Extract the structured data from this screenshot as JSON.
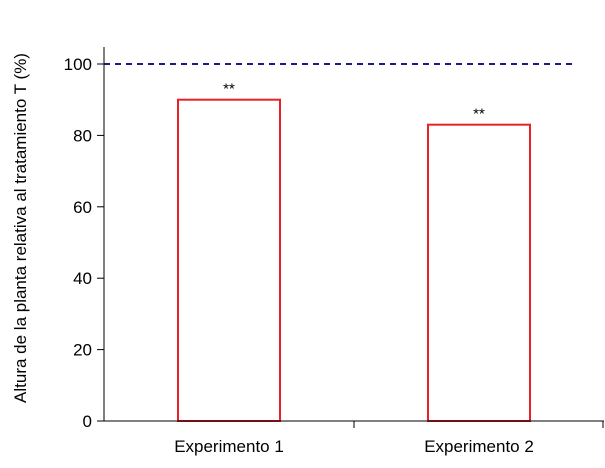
{
  "chart_data": {
    "type": "bar",
    "title": "",
    "xlabel": "",
    "ylabel": "Altura de la planta relativa al tratamiento  T  (%)",
    "categories": [
      "Experimento 1",
      "Experimento 2"
    ],
    "values": [
      90,
      83
    ],
    "annotations": [
      "**",
      "**"
    ],
    "ylim": [
      0,
      100
    ],
    "yticks": [
      0,
      20,
      40,
      60,
      80,
      100
    ],
    "reference_line": {
      "value": 100,
      "style": "dashed"
    },
    "grid": false,
    "legend": "none",
    "colors": {
      "bar_edge": "#e8202a",
      "bar_fill": "#ffffff",
      "reference_line": "#1a1a8c",
      "axis": "#000000"
    }
  }
}
